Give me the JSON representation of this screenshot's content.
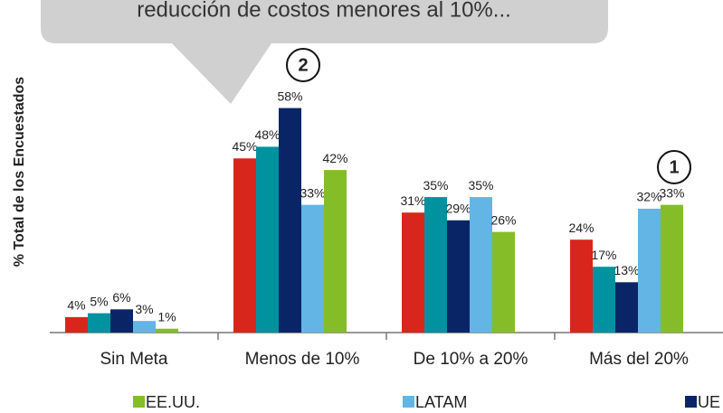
{
  "chart_data": {
    "type": "bar",
    "annotations": [
      "reducción de costos menores al 10%...",
      "2",
      "1"
    ],
    "ylabel": "% Total de los Encuestados",
    "categories": [
      "Sin Meta",
      "Menos de 10%",
      "De 10% a 20%",
      "Más del 20%"
    ],
    "ylim": [
      0,
      60
    ],
    "series": [
      {
        "color": "#d9261c",
        "values": [
          4,
          45,
          31,
          24
        ],
        "value_labels": [
          "4%",
          "45%",
          "31%",
          "24%"
        ]
      },
      {
        "color": "#00929f",
        "values": [
          5,
          48,
          35,
          17
        ],
        "value_labels": [
          "5%",
          "48%",
          "35%",
          "17%"
        ]
      },
      {
        "name": "UE",
        "color": "#0a2566",
        "values": [
          6,
          58,
          29,
          13
        ],
        "value_labels": [
          "6%",
          "58%",
          "29%",
          "13%"
        ]
      },
      {
        "name": "LATAM",
        "color": "#62b5e5",
        "values": [
          3,
          33,
          35,
          32
        ],
        "value_labels": [
          "3%",
          "33%",
          "35%",
          "32%"
        ]
      },
      {
        "name": "EE.UU.",
        "color": "#84bd28",
        "values": [
          1,
          42,
          26,
          33
        ],
        "value_labels": [
          "1%",
          "42%",
          "26%",
          "33%"
        ]
      }
    ]
  }
}
